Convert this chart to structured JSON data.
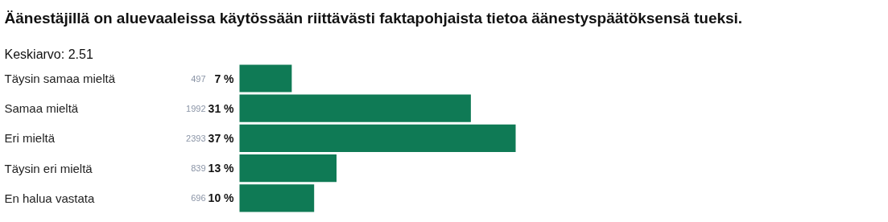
{
  "chart_data": {
    "type": "bar",
    "orientation": "horizontal",
    "title": "Äänestäjillä on aluevaaleissa käytössään riittävästi faktapohjaista tietoa äänestyspäätöksensä tueksi.",
    "subtitle": "Keskiarvo: 2.51",
    "categories": [
      "Täysin samaa mieltä",
      "Samaa mieltä",
      "Eri mieltä",
      "Täysin eri mieltä",
      "En halua vastata"
    ],
    "values": [
      7,
      31,
      37,
      13,
      10
    ],
    "value_labels": [
      "7 %",
      "31 %",
      "37 %",
      "13 %",
      "10 %"
    ],
    "color": "#0f7a55",
    "annotations": [
      "497",
      "1992",
      "2393",
      "839",
      "696"
    ],
    "grid": false
  }
}
